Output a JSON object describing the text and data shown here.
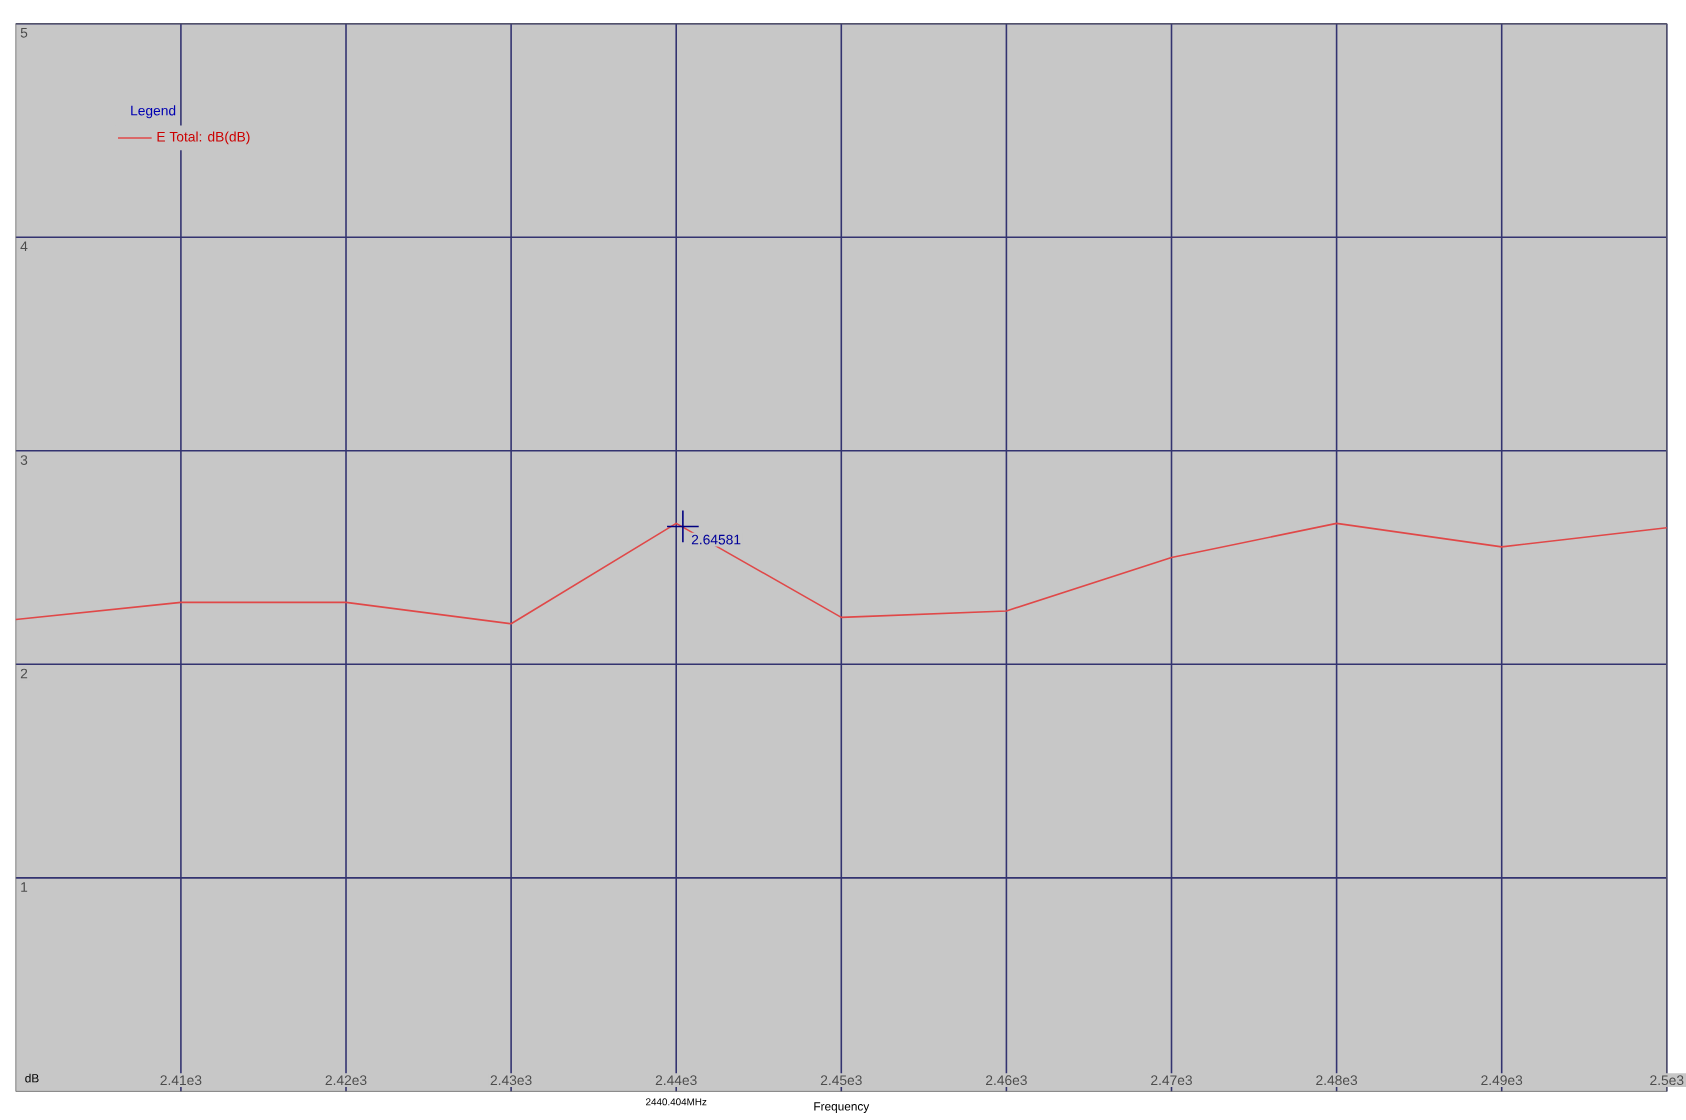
{
  "chart_data": {
    "type": "line",
    "xlabel": "Frequency",
    "ylabel": "dB",
    "legend_title": "Legend",
    "x": [
      2400,
      2410,
      2420,
      2430,
      2440,
      2450,
      2460,
      2470,
      2480,
      2490,
      2500
    ],
    "series": [
      {
        "name": "E Total: dB(dB)",
        "color": "#e04848",
        "values": [
          2.21,
          2.29,
          2.29,
          2.19,
          2.66,
          2.22,
          2.25,
          2.5,
          2.66,
          2.55,
          2.64
        ]
      }
    ],
    "xlim": [
      2400,
      2500
    ],
    "ylim": [
      0,
      5
    ],
    "xticks": [
      {
        "value": 2410,
        "label": "2.41e3"
      },
      {
        "value": 2420,
        "label": "2.42e3"
      },
      {
        "value": 2430,
        "label": "2.43e3"
      },
      {
        "value": 2440,
        "label": "2.44e3"
      },
      {
        "value": 2450,
        "label": "2.45e3"
      },
      {
        "value": 2460,
        "label": "2.46e3"
      },
      {
        "value": 2470,
        "label": "2.47e3"
      },
      {
        "value": 2480,
        "label": "2.48e3"
      },
      {
        "value": 2490,
        "label": "2.49e3"
      },
      {
        "value": 2500,
        "label": "2.5e3"
      }
    ],
    "yticks": [
      1,
      2,
      3,
      4,
      5
    ],
    "annotations": [
      {
        "text": "2.64581",
        "x": 2440.404,
        "y": 2.64581
      },
      "2440.404MHz"
    ],
    "grid": true,
    "legend": "top left",
    "marker": "none",
    "line_style": "solid"
  }
}
